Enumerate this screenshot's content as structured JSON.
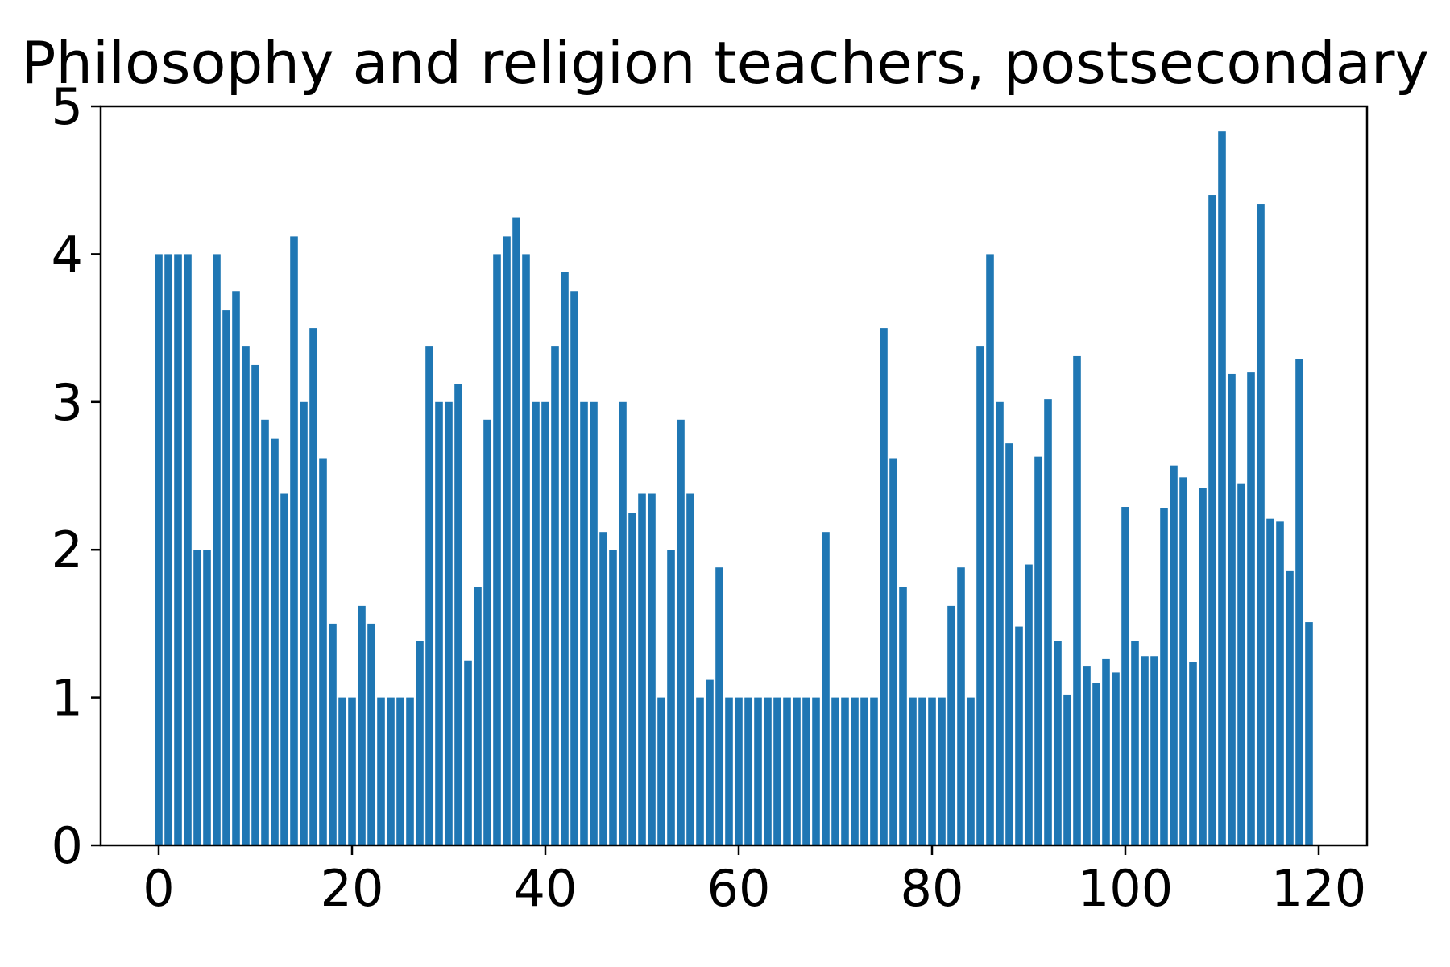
{
  "chart_data": {
    "type": "bar",
    "title": "Philosophy and religion teachers, postsecondary",
    "xlabel": "",
    "ylabel": "",
    "x": [
      0,
      1,
      2,
      3,
      4,
      5,
      6,
      7,
      8,
      9,
      10,
      11,
      12,
      13,
      14,
      15,
      16,
      17,
      18,
      19,
      20,
      21,
      22,
      23,
      24,
      25,
      26,
      27,
      28,
      29,
      30,
      31,
      32,
      33,
      34,
      35,
      36,
      37,
      38,
      39,
      40,
      41,
      42,
      43,
      44,
      45,
      46,
      47,
      48,
      49,
      50,
      51,
      52,
      53,
      54,
      55,
      56,
      57,
      58,
      59,
      60,
      61,
      62,
      63,
      64,
      65,
      66,
      67,
      68,
      69,
      70,
      71,
      72,
      73,
      74,
      75,
      76,
      77,
      78,
      79,
      80,
      81,
      82,
      83,
      84,
      85,
      86,
      87,
      88,
      89,
      90,
      91,
      92,
      93,
      94,
      95,
      96,
      97,
      98,
      99,
      100,
      101,
      102,
      103,
      104,
      105,
      106,
      107,
      108,
      109,
      110,
      111,
      112,
      113,
      114,
      115,
      116,
      117,
      118,
      119
    ],
    "values": [
      4.0,
      4.0,
      4.0,
      4.0,
      2.0,
      2.0,
      4.0,
      3.62,
      3.75,
      3.38,
      3.25,
      2.88,
      2.75,
      2.38,
      4.12,
      3.0,
      3.5,
      2.62,
      1.5,
      1.0,
      1.0,
      1.62,
      1.5,
      1.0,
      1.0,
      1.0,
      1.0,
      1.38,
      3.38,
      3.0,
      3.0,
      3.12,
      1.25,
      1.75,
      2.88,
      4.0,
      4.12,
      4.25,
      4.0,
      3.0,
      3.0,
      3.38,
      3.88,
      3.75,
      3.0,
      3.0,
      2.12,
      2.0,
      3.0,
      2.25,
      2.38,
      2.38,
      1.0,
      2.0,
      2.88,
      2.38,
      1.0,
      1.12,
      1.88,
      1.0,
      1.0,
      1.0,
      1.0,
      1.0,
      1.0,
      1.0,
      1.0,
      1.0,
      1.0,
      2.12,
      1.0,
      1.0,
      1.0,
      1.0,
      1.0,
      3.5,
      2.62,
      1.75,
      1.0,
      1.0,
      1.0,
      1.0,
      1.62,
      1.88,
      1.0,
      3.38,
      4.0,
      3.0,
      2.72,
      1.48,
      1.9,
      2.63,
      3.02,
      1.38,
      1.02,
      3.31,
      1.21,
      1.1,
      1.26,
      1.17,
      2.29,
      1.38,
      1.28,
      1.28,
      2.28,
      2.57,
      2.49,
      1.24,
      2.42,
      4.4,
      4.83,
      3.19,
      2.45,
      3.2,
      4.34,
      2.21,
      2.19,
      1.86,
      3.29,
      1.51
    ],
    "xlim": [
      -6.0,
      125.0
    ],
    "ylim": [
      0,
      5
    ],
    "xticks": [
      0,
      20,
      40,
      60,
      80,
      100,
      120
    ],
    "yticks": [
      0,
      1,
      2,
      3,
      4,
      5
    ],
    "grid": false,
    "legend": "none",
    "bar_color": "#1f77b4"
  }
}
